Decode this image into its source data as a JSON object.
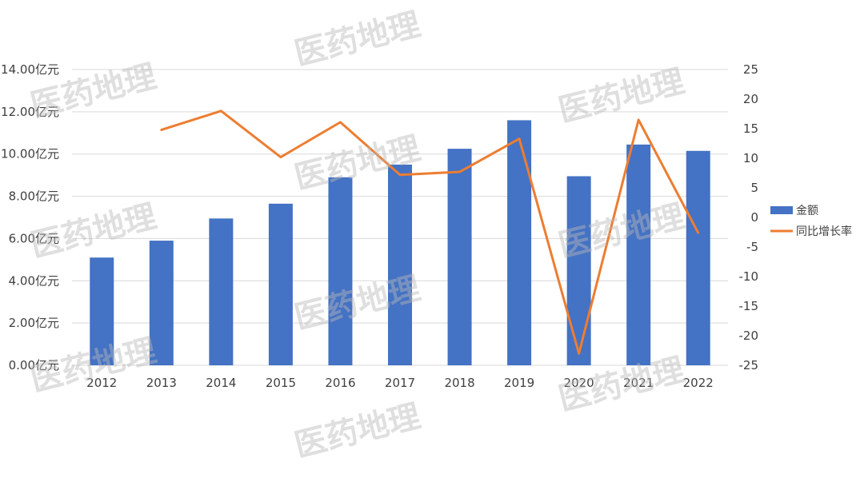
{
  "chart_data": {
    "type": "bar+line",
    "categories": [
      "2012",
      "2013",
      "2014",
      "2015",
      "2016",
      "2017",
      "2018",
      "2019",
      "2020",
      "2021",
      "2022"
    ],
    "series": [
      {
        "name": "金额",
        "type": "bar",
        "axis": "left",
        "color": "#4472C4",
        "values": [
          5.1,
          5.9,
          6.95,
          7.65,
          8.9,
          9.5,
          10.25,
          11.6,
          8.95,
          10.45,
          10.15
        ]
      },
      {
        "name": "同比增长率",
        "type": "line",
        "axis": "right",
        "color": "#ED7D31",
        "values": [
          null,
          14.8,
          18.0,
          10.2,
          16.1,
          7.2,
          7.7,
          13.3,
          -23.0,
          16.5,
          -2.6
        ]
      }
    ],
    "left_axis": {
      "ylim": [
        0,
        14
      ],
      "ticks": [
        "0.00亿元",
        "2.00亿元",
        "4.00亿元",
        "6.00亿元",
        "8.00亿元",
        "10.00亿元",
        "12.00亿元",
        "14.00亿元"
      ]
    },
    "right_axis": {
      "ylim": [
        -25,
        25
      ],
      "ticks": [
        "-25",
        "-20",
        "-15",
        "-10",
        "-5",
        "0",
        "5",
        "10",
        "15",
        "20",
        "25"
      ]
    },
    "grid": true,
    "legend_position": "right",
    "watermark": "医药地理"
  }
}
